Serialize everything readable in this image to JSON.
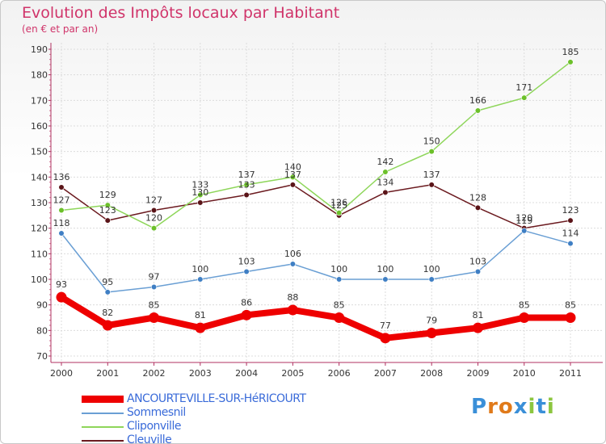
{
  "chart_data": {
    "type": "line",
    "title": "Evolution des Impôts locaux par Habitant",
    "subtitle": "(en € et par an)",
    "xlabel": "",
    "ylabel": "",
    "ylim": [
      70,
      190
    ],
    "yticks": [
      70,
      80,
      90,
      100,
      110,
      120,
      130,
      140,
      150,
      160,
      170,
      180,
      190
    ],
    "categories": [
      "2000",
      "2001",
      "2002",
      "2003",
      "2004",
      "2005",
      "2006",
      "2007",
      "2008",
      "2009",
      "2010",
      "2011"
    ],
    "grid": true,
    "series": [
      {
        "name": "Cleuville",
        "color": "#6b1a1f",
        "point_color": "#5a1418",
        "values": [
          136,
          123,
          127,
          130,
          133,
          137,
          125,
          134,
          137,
          128,
          120,
          123
        ]
      },
      {
        "name": "Cliponville",
        "color": "#8ed65a",
        "point_color": "#6cc02a",
        "values": [
          127,
          129,
          120,
          133,
          137,
          140,
          126,
          142,
          150,
          166,
          171,
          185
        ]
      },
      {
        "name": "Sommesnil",
        "color": "#6a9fd4",
        "point_color": "#3f7fc4",
        "values": [
          118,
          95,
          97,
          100,
          103,
          106,
          100,
          100,
          100,
          103,
          119,
          114
        ]
      },
      {
        "name": "ANCOURTEVILLE-SUR-HéRICOURT",
        "color": "#ee0000",
        "point_color": "#ee0000",
        "values": [
          93,
          82,
          85,
          81,
          86,
          88,
          85,
          77,
          79,
          81,
          85,
          85
        ]
      }
    ]
  },
  "legend": [
    {
      "label": "ANCOURTEVILLE-SUR-HéRICOURT",
      "color": "#ee0000"
    },
    {
      "label": "Sommesnil",
      "color": "#6a9fd4"
    },
    {
      "label": "Cliponville",
      "color": "#8ed65a"
    },
    {
      "label": "Cleuville",
      "color": "#6b1a1f"
    }
  ],
  "logo": {
    "text": "Proxiti"
  }
}
